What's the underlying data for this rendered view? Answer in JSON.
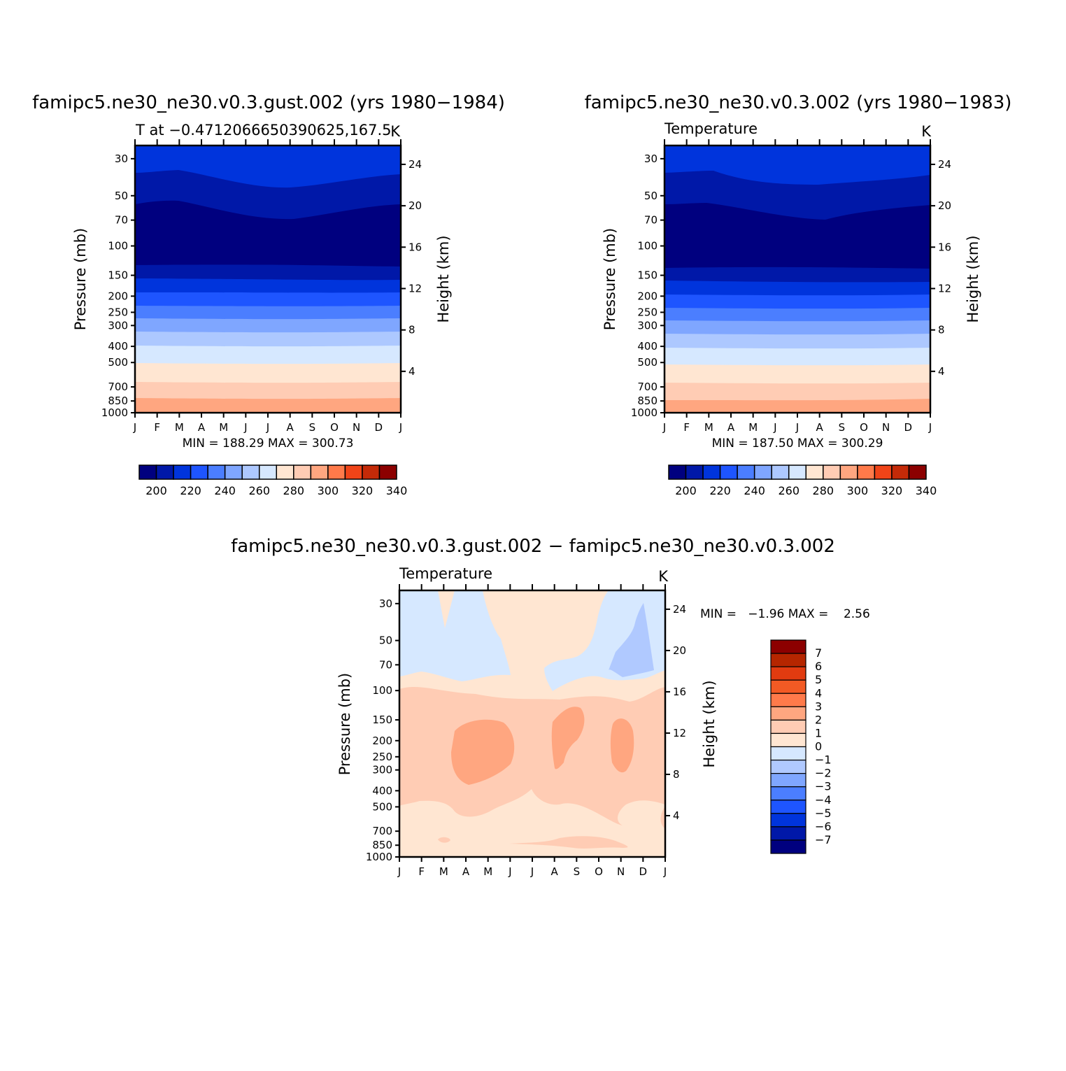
{
  "chart_data": [
    {
      "id": "p1",
      "type": "heatmap",
      "title": "famipc5.ne30_ne30.v0.3.gust.002 (yrs 1980−1984)",
      "subtitle_left": "T at −0.4712066650390625,167.5",
      "subtitle_right": "K",
      "ylabel": "Pressure (mb)",
      "y2label": "Height (km)",
      "minmax_text": "MIN = 188.29 MAX = 300.73",
      "x_ticks": [
        "J",
        "F",
        "M",
        "A",
        "M",
        "J",
        "J",
        "A",
        "S",
        "O",
        "N",
        "D",
        "J"
      ],
      "y_ticks": [
        "30",
        "50",
        "70",
        "100",
        "150",
        "200",
        "250",
        "300",
        "400",
        "500",
        "700",
        "850",
        "1000"
      ],
      "y2_ticks": [
        "24",
        "20",
        "16",
        "12",
        "8",
        "4"
      ],
      "colorbar_labels": [
        "200",
        "220",
        "240",
        "260",
        "280",
        "300",
        "320",
        "340"
      ],
      "min": 188.29,
      "max": 300.73
    },
    {
      "id": "p2",
      "type": "heatmap",
      "title": "famipc5.ne30_ne30.v0.3.002 (yrs 1980−1983)",
      "subtitle_left": "Temperature",
      "subtitle_right": "K",
      "ylabel": "Pressure (mb)",
      "y2label": "Height (km)",
      "minmax_text": "MIN = 187.50 MAX = 300.29",
      "x_ticks": [
        "J",
        "F",
        "M",
        "A",
        "M",
        "J",
        "J",
        "A",
        "S",
        "O",
        "N",
        "D",
        "J"
      ],
      "y_ticks": [
        "30",
        "50",
        "70",
        "100",
        "150",
        "200",
        "250",
        "300",
        "400",
        "500",
        "700",
        "850",
        "1000"
      ],
      "y2_ticks": [
        "24",
        "20",
        "16",
        "12",
        "8",
        "4"
      ],
      "colorbar_labels": [
        "200",
        "220",
        "240",
        "260",
        "280",
        "300",
        "320",
        "340"
      ],
      "min": 187.5,
      "max": 300.29
    },
    {
      "id": "p3",
      "type": "heatmap",
      "title": "famipc5.ne30_ne30.v0.3.gust.002 − famipc5.ne30_ne30.v0.3.002",
      "subtitle_left": "Temperature",
      "subtitle_right": "K",
      "ylabel": "Pressure (mb)",
      "y2label": "Height (km)",
      "minmax_text": "MIN =   −1.96 MAX =    2.56",
      "x_ticks": [
        "J",
        "F",
        "M",
        "A",
        "M",
        "J",
        "J",
        "A",
        "S",
        "O",
        "N",
        "D",
        "J"
      ],
      "y_ticks": [
        "30",
        "50",
        "70",
        "100",
        "150",
        "200",
        "250",
        "300",
        "400",
        "500",
        "700",
        "850",
        "1000"
      ],
      "y2_ticks": [
        "24",
        "20",
        "16",
        "12",
        "8",
        "4"
      ],
      "colorbar_labels": [
        "7",
        "6",
        "5",
        "4",
        "3",
        "2",
        "1",
        "0",
        "−1",
        "−2",
        "−3",
        "−4",
        "−5",
        "−6",
        "−7"
      ],
      "min": -1.96,
      "max": 2.56
    }
  ],
  "colors": {
    "abs_scale": [
      "#00007f",
      "#0018a8",
      "#0034dc",
      "#1e55ff",
      "#4b7eff",
      "#7fa6ff",
      "#adc8ff",
      "#d6e8ff",
      "#ffe6d2",
      "#ffccb4",
      "#ffa680",
      "#ff7a4a",
      "#f04418",
      "#c42a08",
      "#8c0000"
    ],
    "diff_scale": [
      "#8c0000",
      "#b52600",
      "#e13b10",
      "#f25a24",
      "#ff7a4a",
      "#ffa680",
      "#ffccb4",
      "#ffe6d2",
      "#d6e8ff",
      "#b0c9ff",
      "#7fa6ff",
      "#4b7eff",
      "#1e55ff",
      "#0034dc",
      "#0018a8",
      "#00007f"
    ]
  }
}
